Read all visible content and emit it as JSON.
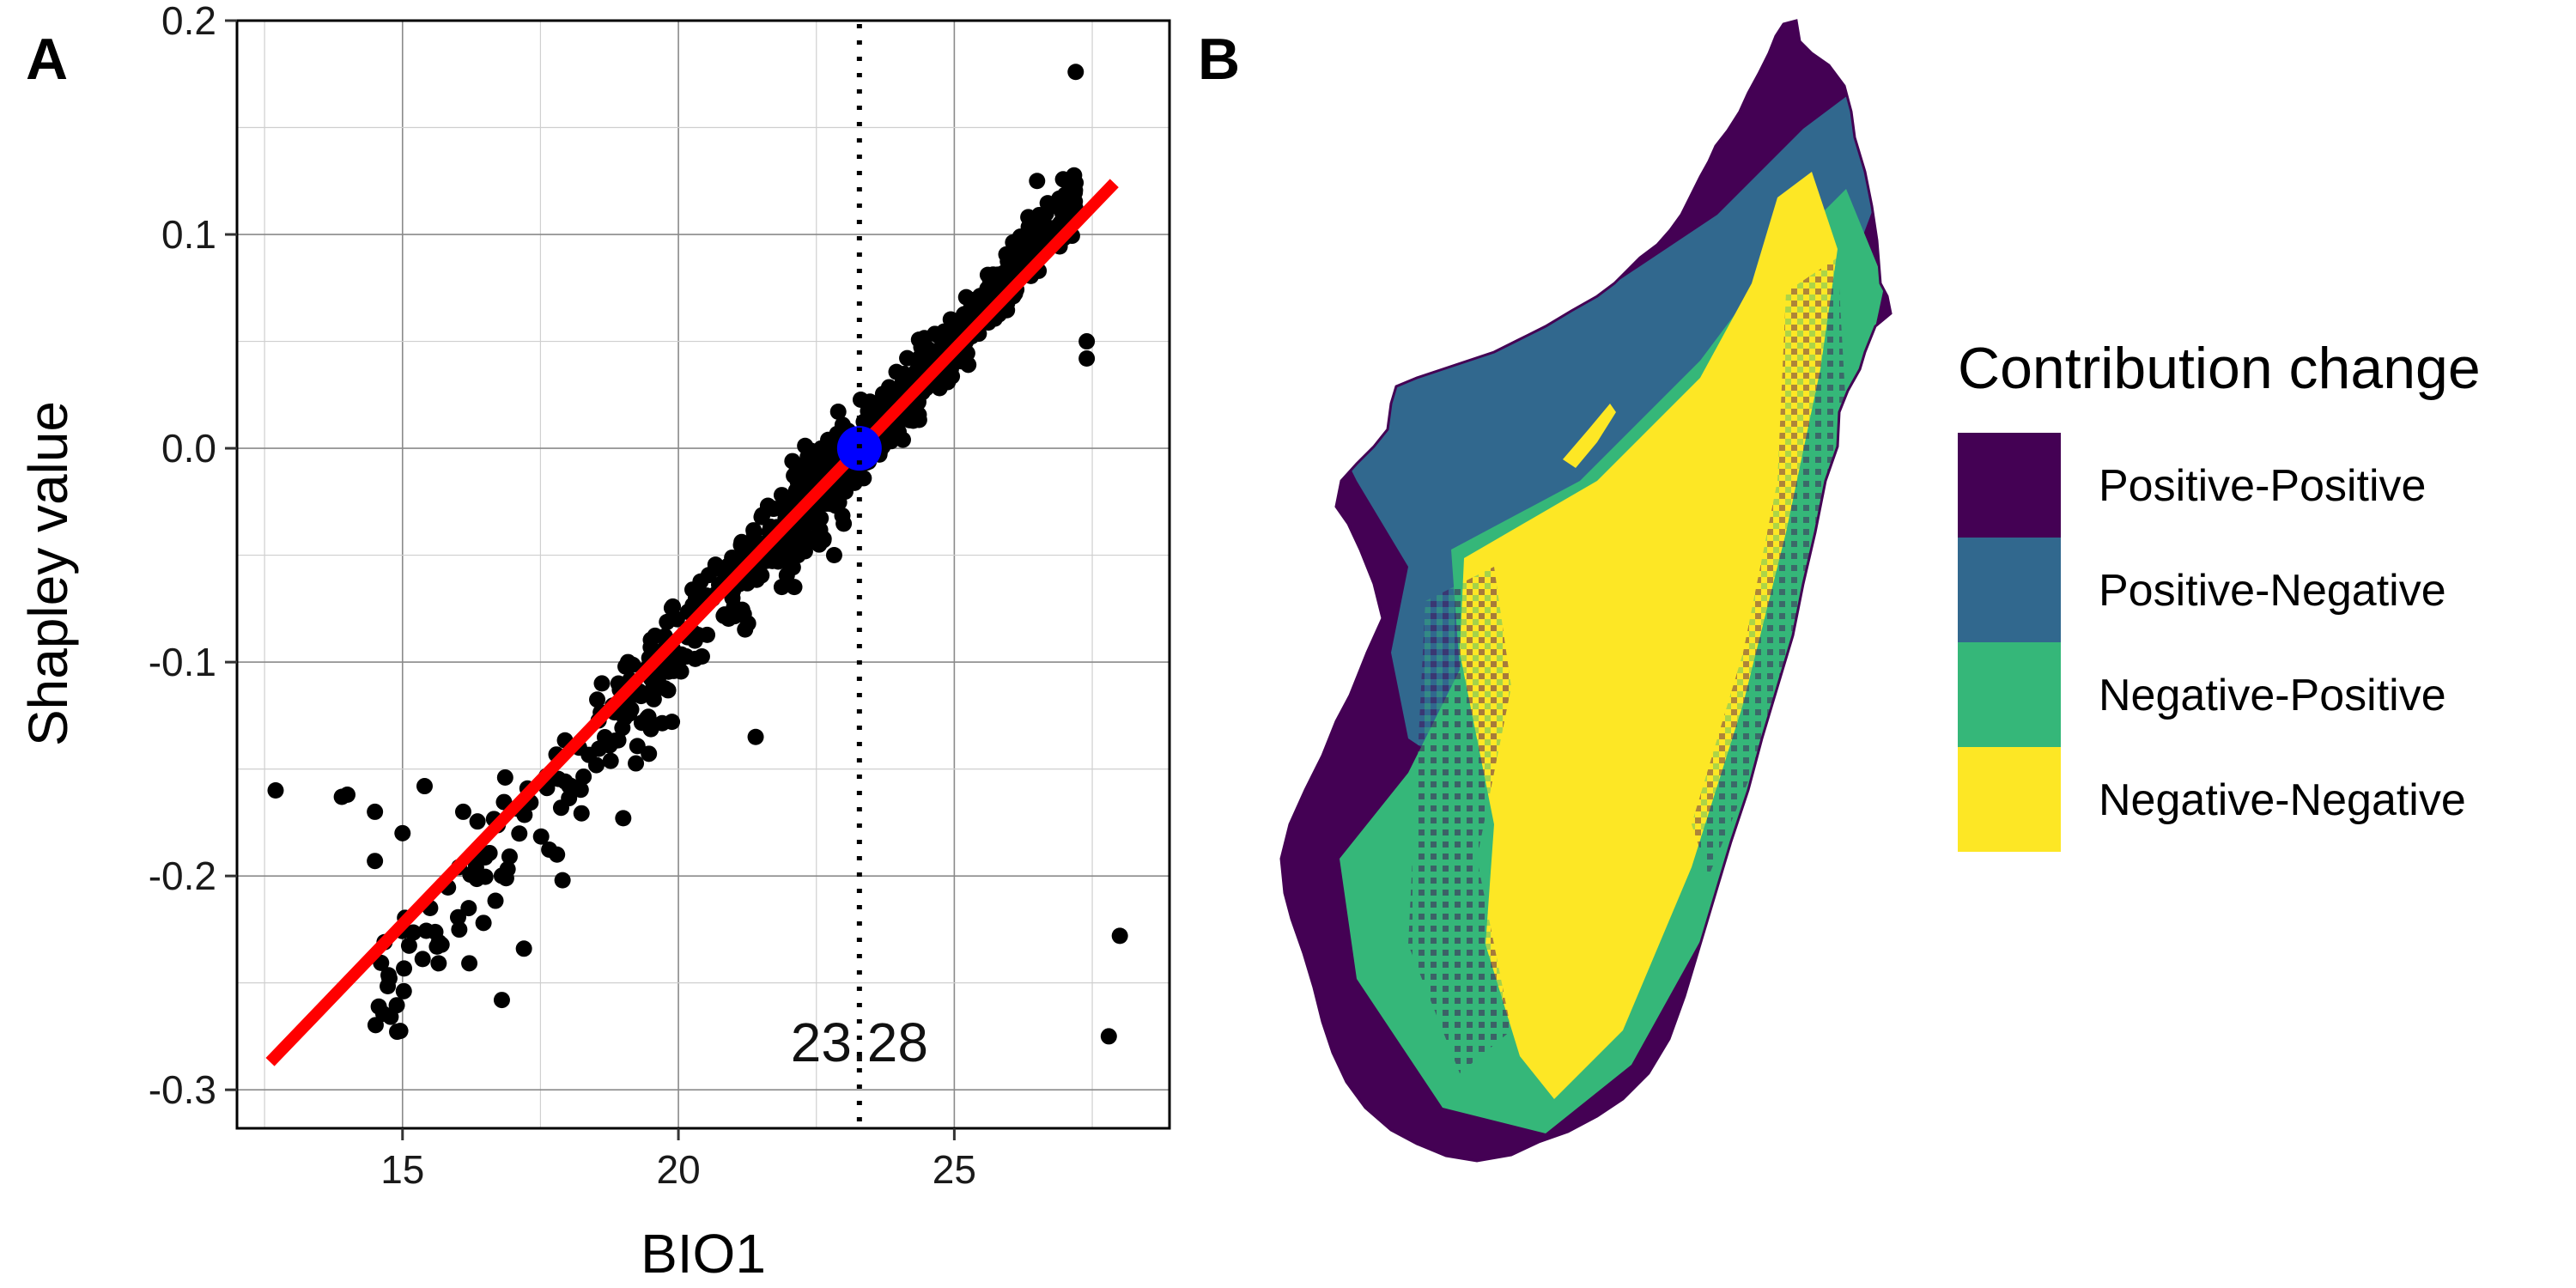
{
  "panels": {
    "a_label": "A",
    "b_label": "B"
  },
  "chart_data": [
    {
      "type": "scatter",
      "panel": "A",
      "xlabel": "BIO1",
      "ylabel": "Shapley value",
      "xlim": [
        12.0,
        28.9
      ],
      "ylim": [
        -0.318,
        0.2
      ],
      "xticks": [
        15,
        20,
        25
      ],
      "xtick_labels": [
        "15",
        "20",
        "25"
      ],
      "yticks": [
        -0.3,
        -0.2,
        -0.1,
        0.0,
        0.1,
        0.2
      ],
      "ytick_labels": [
        "-0.3",
        "-0.2",
        "-0.1",
        "0.0",
        "0.1",
        "0.2"
      ],
      "grid": true,
      "fit_line": {
        "color": "#ff0000",
        "x": [
          12.6,
          27.9
        ],
        "y": [
          -0.287,
          0.124
        ]
      },
      "threshold": {
        "x": 23.28,
        "label": "23.28",
        "style": "dotted"
      },
      "crossing_point": {
        "x": 23.28,
        "y": 0.0,
        "color": "#0000ff"
      },
      "outliers": [
        {
          "x": 12.7,
          "y": -0.16
        },
        {
          "x": 13.9,
          "y": -0.163
        },
        {
          "x": 14.0,
          "y": -0.162
        },
        {
          "x": 14.5,
          "y": -0.17
        },
        {
          "x": 14.5,
          "y": -0.193
        },
        {
          "x": 15.0,
          "y": -0.18
        },
        {
          "x": 15.4,
          "y": -0.158
        },
        {
          "x": 15.5,
          "y": -0.215
        },
        {
          "x": 16.1,
          "y": -0.17
        },
        {
          "x": 16.3,
          "y": -0.2
        },
        {
          "x": 16.8,
          "y": -0.258
        },
        {
          "x": 17.2,
          "y": -0.234
        },
        {
          "x": 17.8,
          "y": -0.19
        },
        {
          "x": 17.9,
          "y": -0.202
        },
        {
          "x": 19.0,
          "y": -0.173
        },
        {
          "x": 27.2,
          "y": 0.176
        },
        {
          "x": 27.4,
          "y": 0.05
        },
        {
          "x": 27.4,
          "y": 0.042
        },
        {
          "x": 27.8,
          "y": -0.275
        },
        {
          "x": 28.0,
          "y": -0.228
        },
        {
          "x": 26.5,
          "y": 0.125
        },
        {
          "x": 18.2,
          "y": -0.14
        },
        {
          "x": 20.9,
          "y": -0.055
        },
        {
          "x": 21.4,
          "y": -0.135
        }
      ],
      "point_color": "#000000",
      "point_count": 950
    },
    {
      "type": "heatmap",
      "panel": "B",
      "legend_title": "Contribution change",
      "legend_position": "right",
      "categories": [
        {
          "label": "Positive-Positive",
          "color": "#440154"
        },
        {
          "label": "Positive-Negative",
          "color": "#31688e"
        },
        {
          "label": "Negative-Positive",
          "color": "#35b779"
        },
        {
          "label": "Negative-Negative",
          "color": "#fde725"
        }
      ]
    }
  ]
}
